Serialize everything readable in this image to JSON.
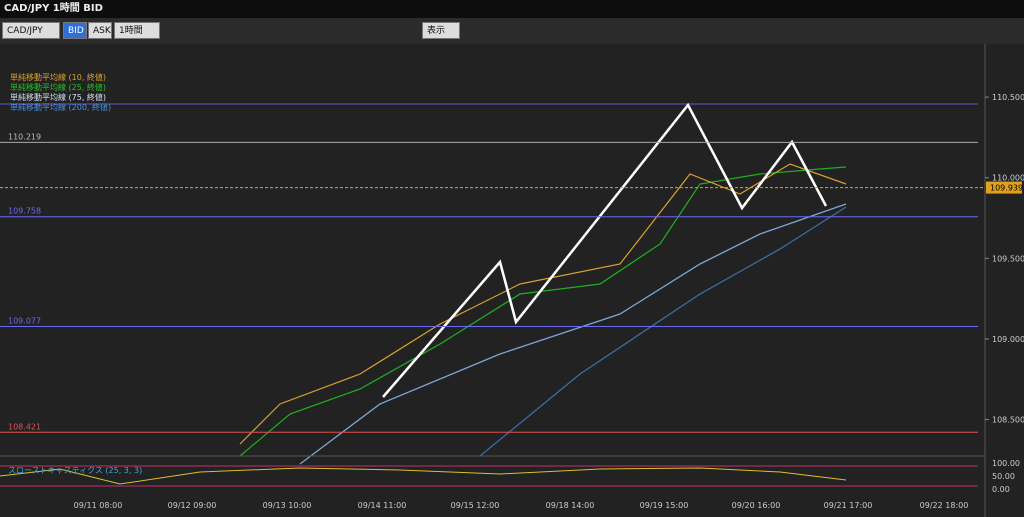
{
  "window": {
    "title": "CAD/JPY 1時間 BID"
  },
  "toolbar": {
    "symbol": "CAD/JPY",
    "bid": "BID",
    "ask": "ASK",
    "timeframe": "1時間",
    "display": "表示"
  },
  "legend": [
    "単純移動平均線 (10, 終値)",
    "単純移動平均線 (25, 終値)",
    "単純移動平均線 (75, 終値)",
    "単純移動平均線 (200, 終値)"
  ],
  "price_axis": {
    "range": [
      108.28,
      110.78
    ],
    "ticks": [
      {
        "value": 110.5,
        "label": "110.500"
      },
      {
        "value": 110,
        "label": "110.000"
      },
      {
        "value": 109.5,
        "label": "109.500"
      },
      {
        "value": 109,
        "label": "109.000"
      },
      {
        "value": 108.5,
        "label": "108.500"
      }
    ]
  },
  "levels": [
    110.219,
    109.758,
    109.077,
    108.421
  ],
  "current_price": 109.939,
  "oscillator": {
    "title": "スローストキャスティクス (25, 3, 3)",
    "ticks": [
      "100.00",
      "50.00",
      "0.00"
    ]
  },
  "dates": [
    "09/11 08:00",
    "09/12 09:00",
    "09/13 10:00",
    "09/14 11:00",
    "09/15 12:00",
    "09/18 14:00",
    "09/19 15:00",
    "09/20 16:00",
    "09/21 17:00",
    "09/22 18:00"
  ]
}
